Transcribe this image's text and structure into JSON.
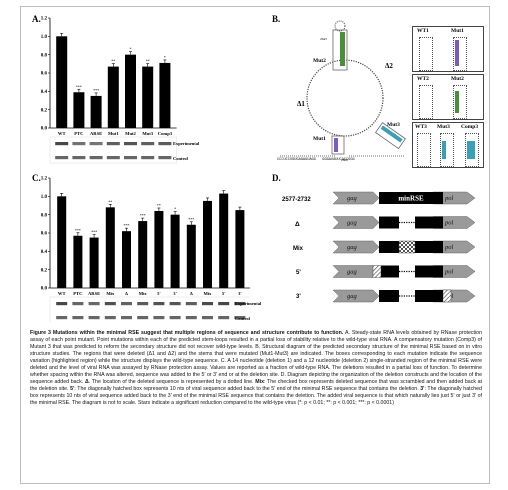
{
  "panels": {
    "a": {
      "label": "A."
    },
    "b": {
      "label": "B.",
      "loop_labels": {
        "mut1": "Mut1",
        "mut2": "Mut2",
        "mut3": "Mut3",
        "delta1": "Δ1",
        "delta2": "Δ2",
        "top_pos": "2645",
        "bottom_pos": "2600"
      },
      "bottom_sequence": "CCCUCCUGUGAGAGUAGG   GGGAUAUUCACCGGG",
      "box_titles": [
        "WT1",
        "Mut1",
        "WT2",
        "Mut2",
        "WT3",
        "Mut3",
        "Comp3"
      ]
    },
    "c": {
      "label": "C."
    },
    "d": {
      "label": "D.",
      "rows": [
        {
          "label": "2577-2732",
          "left": "gag",
          "middle": "minRSE",
          "right": "pol"
        },
        {
          "label": "Δ",
          "left": "gag",
          "middle": "",
          "right": "pol"
        },
        {
          "label": "Mix",
          "left": "gag",
          "middle": "",
          "right": "pol"
        },
        {
          "label": "5'",
          "left": "gag",
          "middle": "",
          "right": "pol"
        },
        {
          "label": "3'",
          "left": "gag",
          "middle": "",
          "right": "pol"
        }
      ]
    }
  },
  "gel_labels": {
    "experimental": "Experimental",
    "control": "Control"
  },
  "chart_data": [
    {
      "type": "bar",
      "categories": [
        "WT",
        "PTC",
        "ARSE",
        "Mut1",
        "Mut2",
        "Mut3",
        "Comp3"
      ],
      "values": [
        1.0,
        0.39,
        0.35,
        0.67,
        0.8,
        0.67,
        0.71
      ],
      "significance": [
        "",
        "***",
        "***",
        "**",
        "*",
        "**",
        "*"
      ],
      "yticks": [
        "0.0",
        "0.2",
        "0.4",
        "0.6",
        "0.8",
        "1.0",
        "1.2"
      ],
      "ylim": [
        0,
        1.2
      ]
    },
    {
      "type": "bar",
      "categories": [
        "WT",
        "PTC",
        "ARSE",
        "Mix",
        "Δ",
        "Mix",
        "5'",
        "3'",
        "Δ",
        "Mix",
        "5'",
        "3'"
      ],
      "values": [
        1.0,
        0.57,
        0.55,
        0.88,
        0.62,
        0.73,
        0.84,
        0.8,
        0.69,
        0.95,
        1.03,
        0.85
      ],
      "significance": [
        "",
        "***",
        "***",
        "**",
        "***",
        "***",
        "**",
        "*",
        "***",
        "",
        "",
        ""
      ],
      "yticks": [
        "0.0",
        "0.2",
        "0.4",
        "0.6",
        "0.8",
        "1.0",
        "1.2"
      ],
      "ylim": [
        0,
        1.2
      ]
    }
  ],
  "caption": {
    "title": "Figure 3 Mutations within the minimal RSE suggest that multiple regions of sequence and structure contribute to function.",
    "body": " A. Steady-state RNA levels obtained by RNase protection assay of each point mutant. Point mutations within each of the predicted stem-loops resulted in a partial loss of stability relative to the wild-type viral RNA. A compensatory mutation (Comp3) of Mutant 3 that was predicted to reform the secondary structure did not recover wild-type levels. B. Structural diagram of the predicted secondary structure of the minimal RSE based on in vitro structure studies. The regions that were deleted (Δ1 and Δ2) and the stems that were mutated (Mut1-Mut3) are indicated. The boxes corresponding to each mutation indicate the sequence variation (highlighted region) while the structure displays the wild-type sequence. C. A 14 nucleotide (deletion 1) and a 12 nucleotide (deletion 2) single-stranded region of the minimal RSE were deleted and the level of viral RNA was assayed by RNase protection assay. Values are reported as a fraction of wild-type RNA. The deletions resulted in a partial loss of function. To determine whether spacing within the RNA was altered, sequence was added to the 5' or 3' end or at the deletion site. D. Diagram depicting the organization of the deletion constructs and the location of the sequence added back. ",
    "delta_term": "Δ",
    "delta_text": ". The location of the deleted sequence is represented by a dotted line. ",
    "mix_term": "Mix",
    "mix_text": ": The checked box represents deleted sequence that was scrambled and then added back at the deletion site. ",
    "five_term": "5'",
    "five_text": ": The diagonally hatched box represents 10 nts of viral sequence added back to the 5' end of the minimal RSE sequence that contains the deletion. ",
    "three_term": "3'",
    "three_text": ": The diagonally hatched box represents 10 nts of viral sequence added back to the 3' end of the minimal RSE sequence that contains the deletion. The added viral sequence is that which naturally lies just 5' or just 3' of the minimal RSE. The diagram is not to scale. Stars indicate a significant reduction compared to the wild-type virus (*: p < 0.01; **: p < 0.001; ***: p < 0.0001)"
  }
}
